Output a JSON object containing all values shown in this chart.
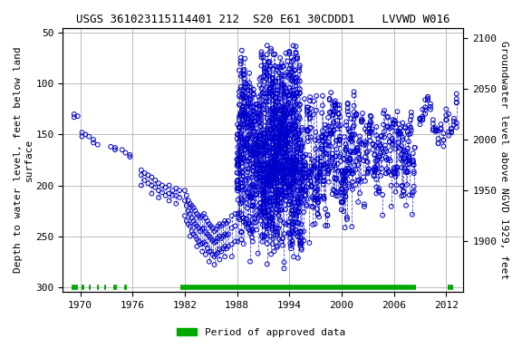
{
  "title": "USGS 361023115114401 212  S20 E61 30CDDD1    LVVWD W016",
  "ylabel_left": "Depth to water level, feet below land\nsurface",
  "ylabel_right": "Groundwater level above NGVD 1929, feet",
  "xlim": [
    1968,
    2014
  ],
  "ylim_left": [
    305,
    45
  ],
  "ylim_right": [
    1850,
    2110
  ],
  "xticks": [
    1970,
    1976,
    1982,
    1988,
    1994,
    2000,
    2006,
    2012
  ],
  "yticks_left": [
    50,
    100,
    150,
    200,
    250,
    300
  ],
  "yticks_right": [
    1900,
    1950,
    2000,
    2050,
    2100
  ],
  "grid_color": "#bbbbbb",
  "plot_color": "#0000cc",
  "approved_color": "#00aa00",
  "background_color": "#ffffff",
  "legend_label": "Period of approved data",
  "title_fontsize": 9,
  "axis_fontsize": 8,
  "tick_fontsize": 8,
  "land_elev": 2155.0
}
